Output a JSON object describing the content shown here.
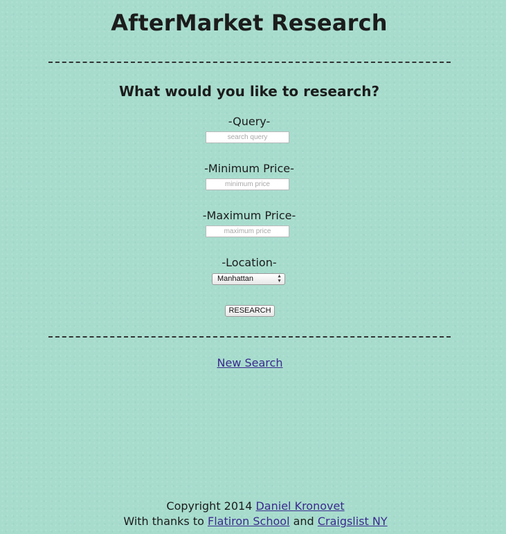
{
  "header": {
    "title": "AfterMarket Research"
  },
  "form": {
    "question": "What would you like to research?",
    "query_label": "-Query-",
    "query_placeholder": "search query",
    "query_value": "",
    "min_price_label": "-Minimum Price-",
    "min_price_placeholder": "minimum price",
    "min_price_value": "",
    "max_price_label": "-Maximum Price-",
    "max_price_placeholder": "maximum price",
    "max_price_value": "",
    "location_label": "-Location-",
    "location_selected": "Manhattan",
    "submit_label": "RESEARCH"
  },
  "links": {
    "new_search": "New Search"
  },
  "footer": {
    "copyright_prefix": "Copyright 2014",
    "author": "Daniel Kronovet",
    "thanks_prefix": "With thanks to",
    "thanks_link_1": "Flatiron School",
    "thanks_and": "and",
    "thanks_link_2": "Craigslist NY"
  },
  "colors": {
    "background": "#a7dccd",
    "link": "#3b2a8e",
    "text": "#1c1c1c"
  },
  "icons": {
    "select_arrows": "up-down-chevron-icon"
  }
}
